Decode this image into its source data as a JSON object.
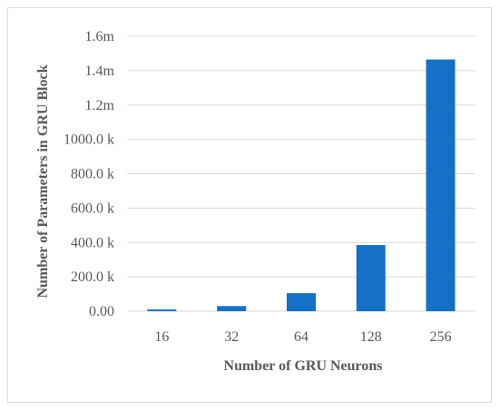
{
  "chart_data": {
    "type": "bar",
    "title": "",
    "xlabel": "Number of GRU Neurons",
    "ylabel": "Number of Parameters in  GRU Block",
    "categories": [
      "16",
      "32",
      "64",
      "128",
      "256"
    ],
    "values": [
      10000,
      30000,
      105000,
      385000,
      1465000
    ],
    "ylim": [
      0,
      1600000
    ],
    "yticks": [
      0,
      200000,
      400000,
      600000,
      800000,
      1000000,
      1200000,
      1400000,
      1600000
    ],
    "ytick_labels": [
      "0.00",
      "200.0 k",
      "400.0 k",
      "600.0 k",
      "800.0 k",
      "1000.0 k",
      "1.2m",
      "1.4m",
      "1.6m"
    ],
    "grid": true,
    "legend": "none",
    "bar_color": "#1570c8",
    "grid_color": "#d9d9d9"
  }
}
